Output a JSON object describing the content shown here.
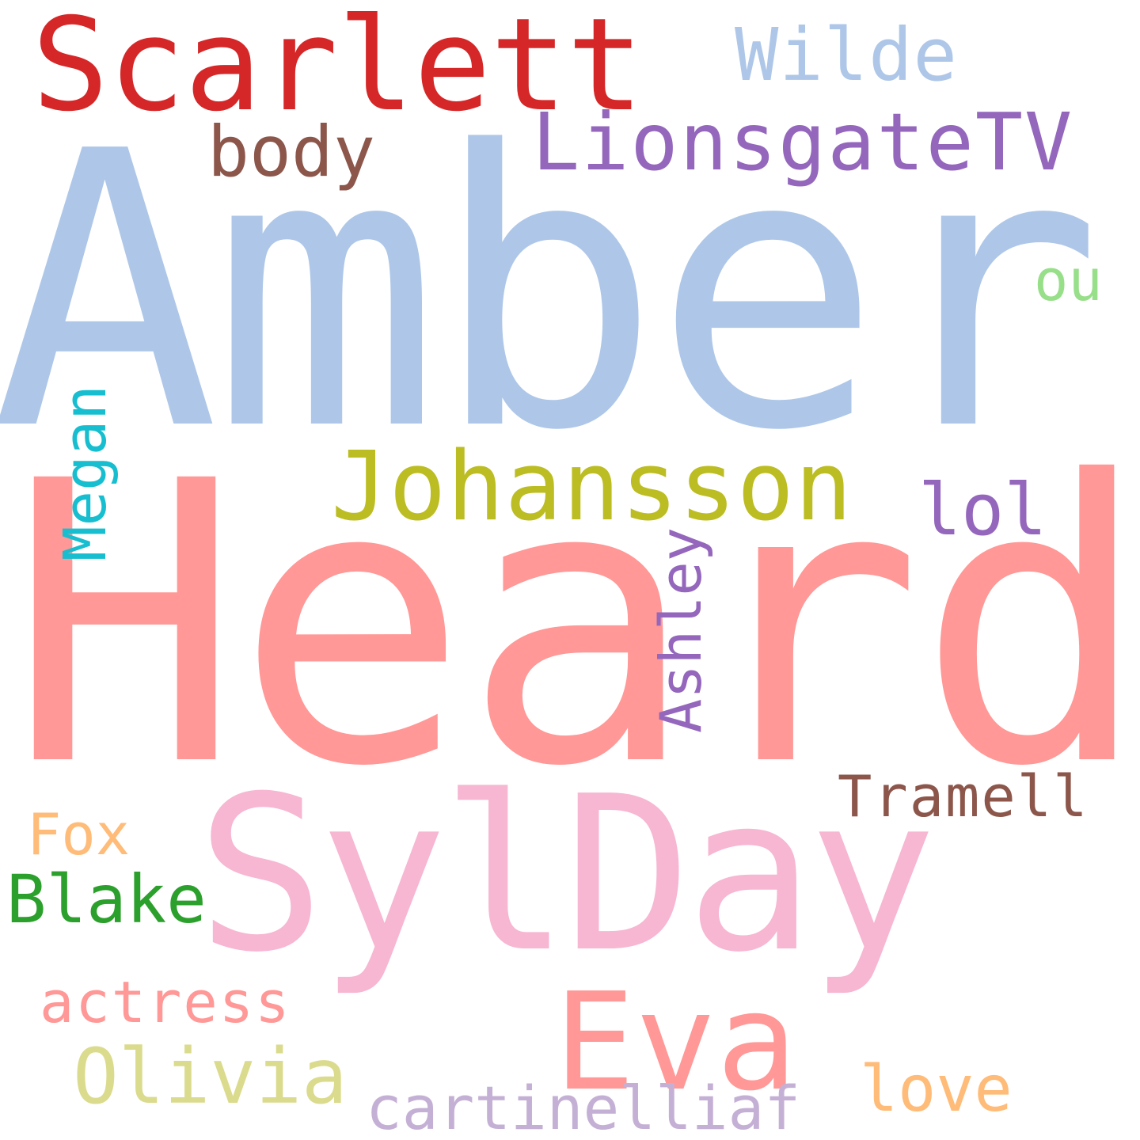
{
  "words": [
    {
      "text": "Amber",
      "color": "#aec7e8"
    },
    {
      "text": "Heard",
      "color": "#ff9896"
    },
    {
      "text": "SylDay",
      "color": "#f7b6d2"
    },
    {
      "text": "Scarlett",
      "color": "#d62728"
    },
    {
      "text": "Wilde",
      "color": "#aec7e8"
    },
    {
      "text": "LionsgateTV",
      "color": "#9467bd"
    },
    {
      "text": "body",
      "color": "#8c564b"
    },
    {
      "text": "ou",
      "color": "#98df8a"
    },
    {
      "text": "Johansson",
      "color": "#bcbd22"
    },
    {
      "text": "lol",
      "color": "#9467bd"
    },
    {
      "text": "Megan",
      "color": "#17becf"
    },
    {
      "text": "Ashley",
      "color": "#9467bd"
    },
    {
      "text": "Tramell",
      "color": "#8c564b"
    },
    {
      "text": "Fox",
      "color": "#ffbb78"
    },
    {
      "text": "Blake",
      "color": "#2ca02c"
    },
    {
      "text": "actress",
      "color": "#ff9896"
    },
    {
      "text": "Eva",
      "color": "#ff9896"
    },
    {
      "text": "Olivia",
      "color": "#dbdb8d"
    },
    {
      "text": "love",
      "color": "#ffbb78"
    },
    {
      "text": "cartinelliaf",
      "color": "#c5b0d5"
    }
  ]
}
